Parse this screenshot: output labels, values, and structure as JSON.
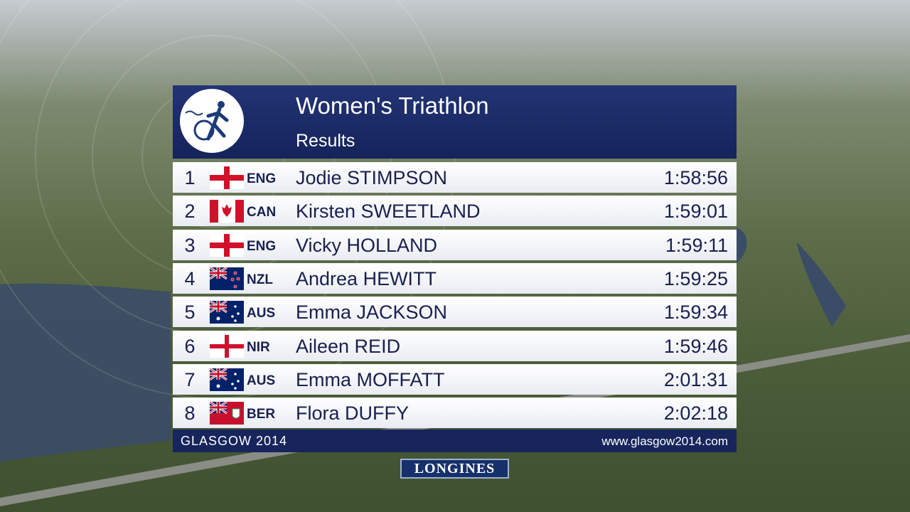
{
  "header": {
    "title": "Women's Triathlon",
    "subtitle": "Results"
  },
  "rows": [
    {
      "rank": 1,
      "code": "ENG",
      "name": "Jodie STIMPSON",
      "time": "1:58:56"
    },
    {
      "rank": 2,
      "code": "CAN",
      "name": "Kirsten SWEETLAND",
      "time": "1:59:01"
    },
    {
      "rank": 3,
      "code": "ENG",
      "name": "Vicky HOLLAND",
      "time": "1:59:11"
    },
    {
      "rank": 4,
      "code": "NZL",
      "name": "Andrea HEWITT",
      "time": "1:59:25"
    },
    {
      "rank": 5,
      "code": "AUS",
      "name": "Emma JACKSON",
      "time": "1:59:34"
    },
    {
      "rank": 6,
      "code": "NIR",
      "name": "Aileen REID",
      "time": "1:59:46"
    },
    {
      "rank": 7,
      "code": "AUS",
      "name": "Emma MOFFATT",
      "time": "2:01:31"
    },
    {
      "rank": 8,
      "code": "BER",
      "name": "Flora DUFFY",
      "time": "2:02:18"
    }
  ],
  "footer": {
    "left": "GLASGOW 2014",
    "right": "www.glasgow2014.com"
  },
  "sponsor": "LONGINES"
}
